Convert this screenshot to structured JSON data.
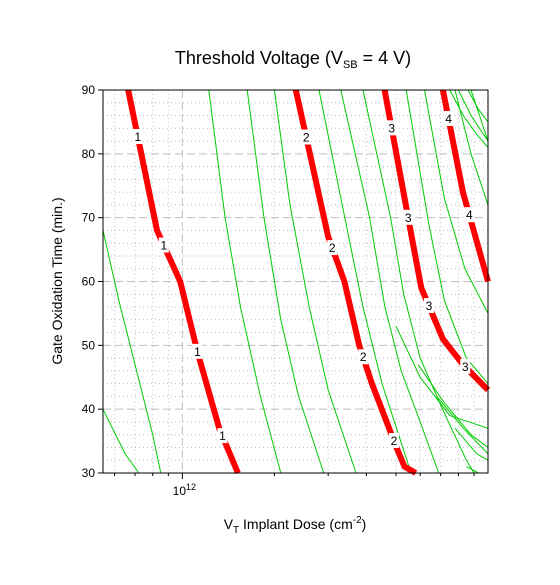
{
  "chart_data": {
    "type": "line",
    "title": {
      "main": "Threshold Voltage (V",
      "sub": "SB",
      "tail": " = 4 V)"
    },
    "xlabel": {
      "main": "V",
      "sub": "T",
      "mid": " Implant Dose (cm",
      "sup": "-2",
      "tail": ")"
    },
    "ylabel": "Gate Oxidation Time (min.)",
    "x_scale": "log",
    "xlim": [
      550000000000.0,
      10000000000000.0
    ],
    "ylim": [
      30,
      90
    ],
    "x_tick_labels": [
      {
        "base": "10",
        "exp": "12",
        "value": 1000000000000.0
      }
    ],
    "y_ticks": [
      30,
      40,
      50,
      60,
      70,
      80,
      90
    ],
    "grid": true,
    "colors": {
      "major": "#ff0000",
      "minor": "#00cc00",
      "grid": "#bfbfbf"
    },
    "series": [
      {
        "name": "1",
        "points": [
          [
            665000000000.0,
            90
          ],
          [
            826000000000.0,
            68
          ],
          [
            984000000000.0,
            60
          ],
          [
            1120000000000.0,
            49
          ],
          [
            1320000000000.0,
            37
          ],
          [
            1520000000000.0,
            30
          ]
        ]
      },
      {
        "name": "2",
        "points": [
          [
            2350000000000.0,
            90
          ],
          [
            3000000000000.0,
            67
          ],
          [
            3390000000000.0,
            60
          ],
          [
            3790000000000.0,
            50
          ],
          [
            4170000000000.0,
            44
          ],
          [
            5020000000000.0,
            34
          ],
          [
            5330000000000.0,
            31
          ],
          [
            5800000000000.0,
            30
          ]
        ]
      },
      {
        "name": "3",
        "points": [
          [
            4590000000000.0,
            90
          ],
          [
            5630000000000.0,
            67
          ],
          [
            6050000000000.0,
            59
          ],
          [
            7120000000000.0,
            51
          ],
          [
            8280000000000.0,
            47
          ],
          [
            10000000000000.0,
            43
          ]
        ]
      },
      {
        "name": "4",
        "points": [
          [
            7120000000000.0,
            90
          ],
          [
            8280000000000.0,
            74
          ],
          [
            10000000000000.0,
            60
          ]
        ]
      }
    ],
    "minor_contours": [
      [
        [
          550000000000.0,
          68
        ],
        [
          620000000000.0,
          57
        ],
        [
          700000000000.0,
          47
        ],
        [
          800000000000.0,
          36
        ],
        [
          850000000000.0,
          30
        ]
      ],
      [
        [
          550000000000.0,
          40
        ],
        [
          650000000000.0,
          33
        ],
        [
          720000000000.0,
          30
        ]
      ],
      [
        [
          1220000000000.0,
          90
        ],
        [
          1380000000000.0,
          70
        ],
        [
          1550000000000.0,
          56
        ],
        [
          1800000000000.0,
          42
        ],
        [
          2100000000000.0,
          30
        ]
      ],
      [
        [
          1630000000000.0,
          90
        ],
        [
          1850000000000.0,
          70
        ],
        [
          2100000000000.0,
          54
        ],
        [
          2400000000000.0,
          42
        ],
        [
          2900000000000.0,
          30
        ]
      ],
      [
        [
          2000000000000.0,
          90
        ],
        [
          2250000000000.0,
          72
        ],
        [
          2600000000000.0,
          56
        ],
        [
          3000000000000.0,
          43
        ],
        [
          3700000000000.0,
          30
        ]
      ],
      [
        [
          2800000000000.0,
          90
        ],
        [
          3400000000000.0,
          70
        ],
        [
          3900000000000.0,
          56
        ],
        [
          4500000000000.0,
          44
        ],
        [
          5100000000000.0,
          36
        ],
        [
          5600000000000.0,
          30
        ]
      ],
      [
        [
          3300000000000.0,
          90
        ],
        [
          4100000000000.0,
          70
        ],
        [
          4600000000000.0,
          56
        ],
        [
          5200000000000.0,
          46
        ],
        [
          6000000000000.0,
          38
        ],
        [
          6900000000000.0,
          30
        ]
      ],
      [
        [
          3900000000000.0,
          90
        ],
        [
          4800000000000.0,
          70
        ],
        [
          5300000000000.0,
          58
        ],
        [
          6000000000000.0,
          48
        ],
        [
          7100000000000.0,
          40
        ],
        [
          8500000000000.0,
          32
        ],
        [
          9000000000000.0,
          30
        ]
      ],
      [
        [
          5400000000000.0,
          90
        ],
        [
          6400000000000.0,
          69
        ],
        [
          7200000000000.0,
          57
        ],
        [
          8500000000000.0,
          48
        ],
        [
          10000000000000.0,
          44
        ]
      ],
      [
        [
          6200000000000.0,
          90
        ],
        [
          7200000000000.0,
          73
        ],
        [
          8400000000000.0,
          62
        ],
        [
          10000000000000.0,
          55
        ]
      ],
      [
        [
          7800000000000.0,
          90
        ],
        [
          8800000000000.0,
          80
        ],
        [
          10000000000000.0,
          72
        ]
      ],
      [
        [
          8800000000000.0,
          90
        ],
        [
          10000000000000.0,
          82
        ]
      ],
      [
        [
          5000000000000.0,
          53
        ],
        [
          6000000000000.0,
          45
        ],
        [
          7500000000000.0,
          39
        ],
        [
          10000000000000.0,
          37
        ]
      ],
      [
        [
          5900000000000.0,
          47
        ],
        [
          7200000000000.0,
          41
        ],
        [
          8800000000000.0,
          36
        ],
        [
          10000000000000.0,
          34
        ]
      ],
      [
        [
          6800000000000.0,
          42
        ],
        [
          8300000000000.0,
          37
        ],
        [
          10000000000000.0,
          33
        ]
      ],
      [
        [
          7800000000000.0,
          37
        ],
        [
          9200000000000.0,
          33
        ],
        [
          10000000000000.0,
          32
        ]
      ],
      [
        [
          8600000000000.0,
          90
        ],
        [
          9300000000000.0,
          87
        ],
        [
          10000000000000.0,
          85
        ]
      ],
      [
        [
          8000000000000.0,
          90
        ],
        [
          8800000000000.0,
          86
        ],
        [
          10000000000000.0,
          82
        ]
      ],
      [
        [
          7500000000000.0,
          90
        ],
        [
          8300000000000.0,
          86
        ],
        [
          9200000000000.0,
          83
        ],
        [
          10000000000000.0,
          81
        ]
      ],
      [
        [
          8500000000000.0,
          31
        ],
        [
          9300000000000.0,
          30
        ]
      ]
    ]
  }
}
